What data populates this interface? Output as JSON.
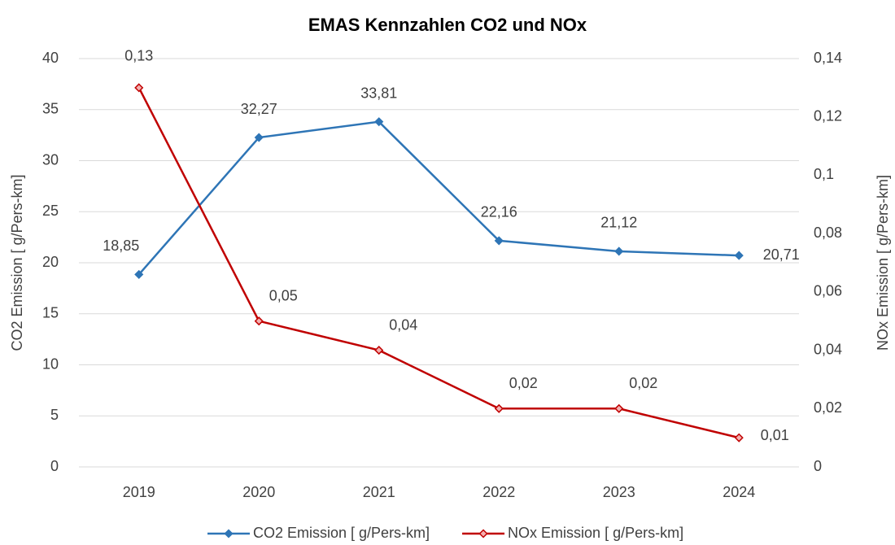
{
  "chart_data": {
    "type": "line",
    "title": "EMAS Kennzahlen CO2 und NOx",
    "categories": [
      "2019",
      "2020",
      "2021",
      "2022",
      "2023",
      "2024"
    ],
    "y_label": "CO2 Emission [ g/Pers-km]",
    "y2_label": "NOx Emission [ g/Pers-km]",
    "ylim": [
      0,
      40
    ],
    "yticks": [
      0,
      5,
      10,
      15,
      20,
      25,
      30,
      35,
      40
    ],
    "y2lim": [
      0,
      0.14
    ],
    "y2ticks": [
      0,
      {
        "value": 0.02,
        "label": "0,02"
      },
      {
        "value": 0.04,
        "label": "0,04"
      },
      {
        "value": 0.06,
        "label": "0,06"
      },
      {
        "value": 0.08,
        "label": "0,08"
      },
      {
        "value": 0.1,
        "label": "0,1"
      },
      {
        "value": 0.12,
        "label": "0,12"
      },
      {
        "value": 0.14,
        "label": "0,14"
      }
    ],
    "grid": true,
    "legend": "bottom",
    "series": [
      {
        "name": "CO2 Emission [ g/Pers-km]",
        "color": "#2e75b6",
        "values": [
          18.85,
          32.27,
          33.81,
          22.16,
          21.12,
          20.71
        ],
        "value_labels": [
          "18,85",
          "32,27",
          "33,81",
          "22,16",
          "21,12",
          "20,71"
        ]
      },
      {
        "name": "NOx Emission [ g/Pers-km]",
        "color": "#c00000",
        "axis": "y2",
        "values": [
          0.13,
          0.05,
          0.04,
          0.02,
          0.02,
          0.01
        ],
        "value_labels": [
          "0,13",
          "0,05",
          "0,04",
          "0,02",
          "0,02",
          "0,01"
        ]
      }
    ]
  }
}
